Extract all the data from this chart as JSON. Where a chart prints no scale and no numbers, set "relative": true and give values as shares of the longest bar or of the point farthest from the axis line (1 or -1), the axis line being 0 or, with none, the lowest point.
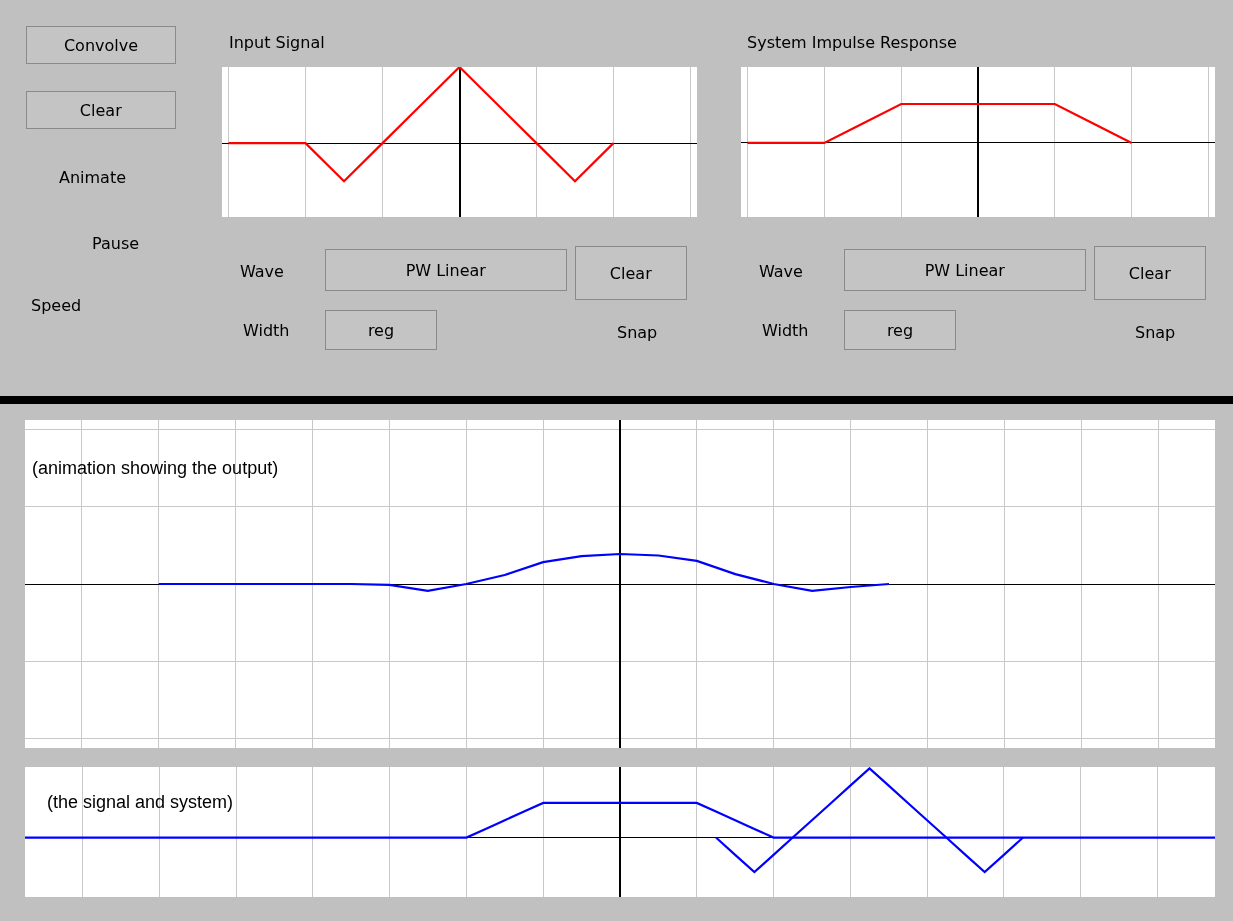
{
  "chart_data": [
    {
      "type": "other",
      "annotations": [
        "Convolve",
        "Clear",
        "Animate",
        "Pause",
        "Speed"
      ]
    },
    {
      "type": "line",
      "title": "Input Signal",
      "relative": true,
      "grid": "x",
      "categories": [
        null,
        null,
        null,
        null,
        null,
        null,
        null,
        null,
        null,
        null,
        null,
        null,
        null
      ],
      "color": "#ff0000",
      "values": [
        0,
        0,
        0,
        -0.5,
        0,
        0.5,
        1,
        0.5,
        0,
        -0.5,
        0,
        null,
        null
      ]
    },
    {
      "type": "other",
      "annotations": [
        "Wave",
        "PW Linear",
        "Clear",
        "Width",
        "reg",
        "Snap"
      ]
    },
    {
      "type": "line",
      "title": "System Impulse Response",
      "relative": true,
      "grid": "x",
      "categories": [
        null,
        null,
        null,
        null,
        null,
        null,
        null,
        null,
        null,
        null,
        null,
        null,
        null
      ],
      "color": "#ff0000",
      "values": [
        0,
        0,
        0,
        0.5,
        1,
        1,
        1,
        1,
        1,
        0.5,
        0,
        null,
        null
      ]
    },
    {
      "type": "other",
      "annotations": [
        "Wave",
        "PW Linear",
        "Clear",
        "Width",
        "reg",
        "Snap"
      ]
    },
    {
      "type": "line",
      "relative": true,
      "grid": true,
      "annotations": [
        "(animation showing the output)"
      ],
      "categories": [
        null,
        null,
        null,
        null,
        null,
        null,
        null,
        null,
        null,
        null,
        null,
        null,
        null,
        null,
        null,
        null,
        null,
        null,
        null,
        null,
        null,
        null,
        null,
        null,
        null,
        null,
        null,
        null,
        null,
        null,
        null
      ],
      "color": "#0000ff",
      "values": [
        null,
        null,
        null,
        0,
        0,
        0,
        0,
        0,
        0,
        -0.03,
        -0.23,
        0,
        0.3,
        0.73,
        0.93,
        1,
        0.95,
        0.77,
        0.33,
        0,
        -0.23,
        -0.1,
        0,
        null,
        null,
        null,
        null,
        null,
        null,
        null,
        null
      ]
    },
    {
      "type": "line",
      "relative": true,
      "grid": "x",
      "annotations": [
        "(the signal and system)"
      ],
      "categories": [
        null,
        null,
        null,
        null,
        null,
        null,
        null,
        null,
        null,
        null,
        null,
        null,
        null,
        null,
        null,
        null,
        null,
        null,
        null,
        null,
        null,
        null,
        null,
        null,
        null,
        null,
        null,
        null,
        null,
        null,
        null,
        null,
        null,
        null,
        null,
        null,
        null,
        null,
        null,
        null,
        null,
        null,
        null,
        null,
        null,
        null,
        null,
        null,
        null,
        null,
        null,
        null,
        null,
        null,
        null,
        null,
        null,
        null,
        null,
        null,
        null,
        null,
        null
      ],
      "series": [
        {
          "color": "#0000ff",
          "values": [
            0,
            0,
            0,
            0,
            0,
            0,
            0,
            0,
            0,
            0,
            0,
            0,
            0,
            0,
            0,
            0,
            0,
            0,
            0,
            0,
            0,
            0,
            0,
            0,
            0.125,
            0.25,
            0.375,
            0.5,
            0.5,
            0.5,
            0.5,
            0.5,
            0.5,
            0.5,
            0.5,
            0.5,
            0.375,
            0.25,
            0.125,
            0,
            0,
            0,
            0,
            0,
            0,
            0,
            0,
            0,
            0,
            0,
            0,
            0,
            0,
            0,
            0,
            0,
            0,
            0,
            0,
            0,
            0,
            0,
            0
          ]
        },
        {
          "color": "#0000ff",
          "values": [
            null,
            null,
            null,
            null,
            null,
            null,
            null,
            null,
            null,
            null,
            null,
            null,
            null,
            null,
            null,
            null,
            null,
            null,
            null,
            null,
            null,
            null,
            null,
            null,
            null,
            null,
            null,
            null,
            null,
            null,
            null,
            null,
            null,
            null,
            null,
            null,
            0,
            -0.25,
            -0.5,
            -0.25,
            0,
            0.25,
            0.5,
            0.75,
            1,
            0.75,
            0.5,
            0.25,
            0,
            -0.25,
            -0.5,
            -0.25,
            0,
            null,
            null,
            null,
            null,
            null,
            null,
            null,
            null,
            null,
            null
          ]
        }
      ]
    }
  ]
}
